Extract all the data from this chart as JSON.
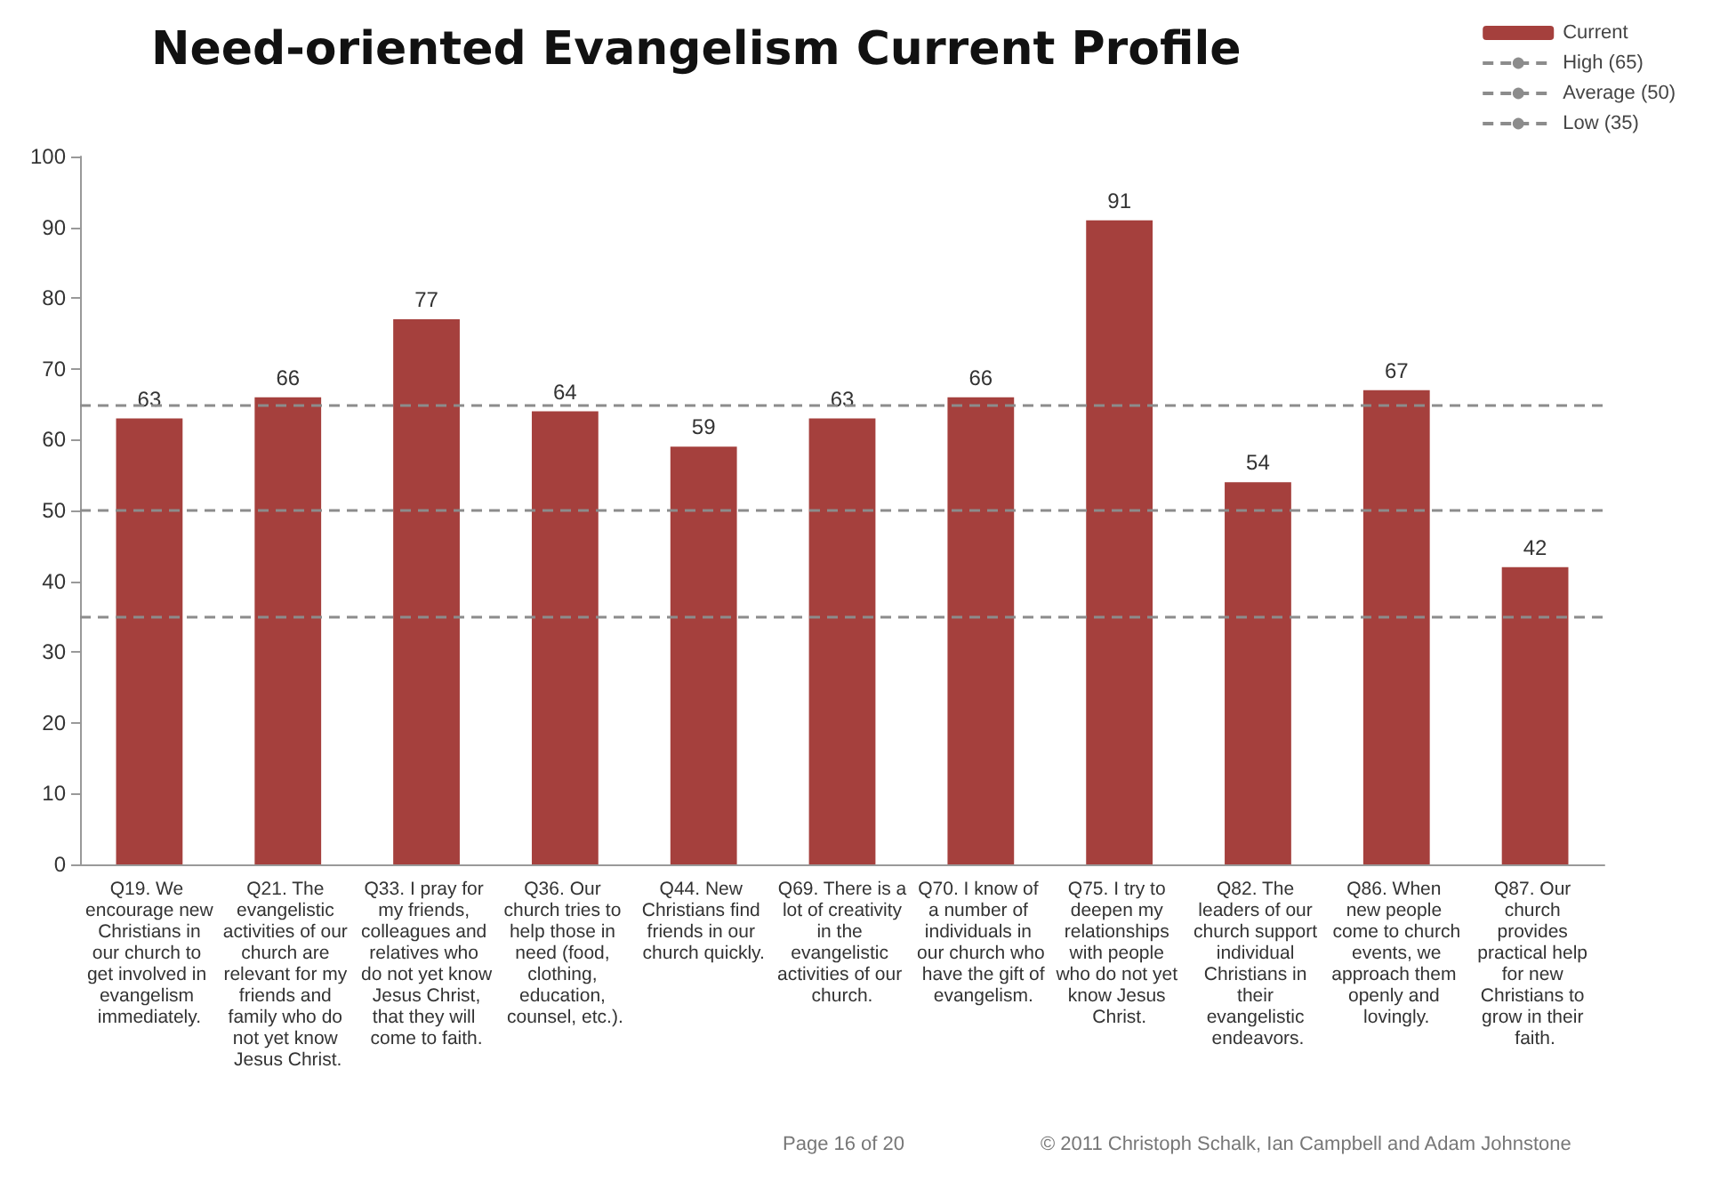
{
  "chart_data": {
    "type": "bar",
    "title": "Need-oriented Evangelism Current Profile",
    "categories": [
      "Q19. We encourage new Christians in our church to get involved in evangelism immediately.",
      "Q21. The evangelistic activities of our church are relevant for my friends and family who do not yet know Jesus Christ.",
      "Q33. I pray for my friends, colleagues and relatives who do not yet know Jesus Christ, that they will come to faith.",
      "Q36. Our church tries to help those in need (food, clothing, education, counsel, etc.).",
      "Q44. New Christians find friends in our church quickly.",
      "Q69. There is a lot of creativity in the evangelistic activities of our church.",
      "Q70. I know of a number of individuals in our church who have the gift of evangelism.",
      "Q75. I try to deepen my relationships with people who do not yet know Jesus Christ.",
      "Q82. The leaders of our church support individual Christians in their evangelistic endeavors.",
      "Q86. When new people come to church events, we approach them openly and lovingly.",
      "Q87. Our church provides practical help for new Christians to grow in their faith."
    ],
    "series": [
      {
        "name": "Current",
        "color": "#a5403d",
        "values": [
          63,
          66,
          77,
          64,
          59,
          63,
          66,
          91,
          54,
          67,
          42
        ]
      }
    ],
    "ylim": [
      0,
      100
    ],
    "yticks": [
      0,
      10,
      20,
      30,
      40,
      50,
      60,
      70,
      80,
      90,
      100
    ],
    "grid": false,
    "data_labels": true,
    "legend": "top right",
    "ref_lines": [
      {
        "axis": "y",
        "value": 65,
        "label": "High (65)",
        "color": "#8c8c8c",
        "line_style": "dashed"
      },
      {
        "axis": "y",
        "value": 50,
        "label": "Average (50)",
        "color": "#8c8c8c",
        "line_style": "dashed"
      },
      {
        "axis": "y",
        "value": 35,
        "label": "Low (35)",
        "color": "#8c8c8c",
        "line_style": "dashed"
      }
    ],
    "annotations": [
      "Page 16 of 20",
      "© 2011 Christoph Schalk, Ian Campbell and Adam Johnstone"
    ]
  }
}
